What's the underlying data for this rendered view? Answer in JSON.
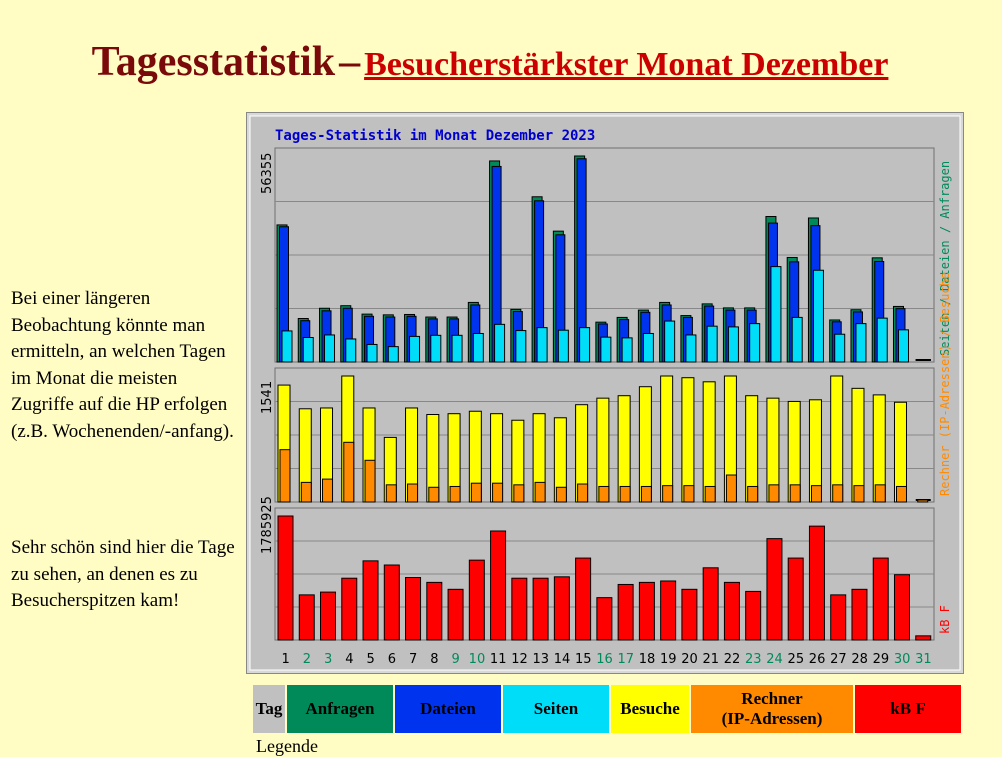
{
  "page": {
    "title_main": "Tagesstatistik",
    "title_dash": "–",
    "title_sub": "Besucherstärkster  Monat Dezember",
    "paragraph1": "Bei einer längeren Beobachtung  könnte man ermitteln,  an welchen Tagen im Monat die meisten Zugriffe  auf die HP erfolgen  (z.B. Wochenenden/-anfang).",
    "paragraph2": "Sehr schön sind hier die Tage zu sehen, an denen es zu Besucherspitzen kam!",
    "footer_partial": "Legende"
  },
  "legend": [
    {
      "label": "Tag",
      "color": "#c0c0c0",
      "width": 32
    },
    {
      "label": "Anfragen",
      "color": "#008a5a",
      "width": 106
    },
    {
      "label": "Dateien",
      "color": "#0033ee",
      "width": 106
    },
    {
      "label": "Seiten",
      "color": "#00ddf8",
      "width": 106
    },
    {
      "label": "Besuche",
      "color": "#ffff00",
      "width": 78
    },
    {
      "label": "Rechner\n(IP-Adressen)",
      "color": "#ff8a00",
      "width": 162
    },
    {
      "label": "kB F",
      "color": "#ff0000",
      "width": 106
    }
  ],
  "chart_data": {
    "type": "bar",
    "title": "Tages-Statistik im Monat Dezember 2023",
    "x": [
      1,
      2,
      3,
      4,
      5,
      6,
      7,
      8,
      9,
      10,
      11,
      12,
      13,
      14,
      15,
      16,
      17,
      18,
      19,
      20,
      21,
      22,
      23,
      24,
      25,
      26,
      27,
      28,
      29,
      30,
      31
    ],
    "weekend_days": [
      2,
      3,
      9,
      10,
      16,
      17,
      23,
      24,
      30,
      31
    ],
    "colors": {
      "anfragen": "#008a5a",
      "dateien": "#0033ee",
      "seiten": "#00ddf8",
      "besuche": "#ffff00",
      "rechner": "#ff8a00",
      "kbf": "#ff0000"
    },
    "panels": [
      {
        "max_label": "56355",
        "ymax": 56355,
        "right_label": "Seiten / Dateien / Anfragen",
        "series": [
          {
            "key": "anfragen",
            "values": [
              37500,
              11900,
              14700,
              15400,
              13100,
              12900,
              13000,
              12300,
              12300,
              16300,
              55000,
              14400,
              45200,
              35800,
              56355,
              10900,
              12200,
              14200,
              16300,
              12700,
              15900,
              14800,
              14800,
              39800,
              28600,
              39400,
              11500,
              14300,
              28500,
              15200,
              0
            ]
          },
          {
            "key": "dateien",
            "values": [
              37000,
              11300,
              14000,
              14700,
              12500,
              12300,
              12500,
              11800,
              11800,
              15600,
              53500,
              13800,
              44100,
              34800,
              55600,
              10400,
              11600,
              13600,
              15600,
              12200,
              15300,
              14200,
              14200,
              38000,
              27400,
              37300,
              11000,
              13700,
              27500,
              14600,
              0
            ]
          },
          {
            "key": "seiten",
            "values": [
              8500,
              6700,
              7400,
              6300,
              4800,
              4200,
              7000,
              7300,
              7300,
              7800,
              10300,
              8600,
              9400,
              8700,
              9400,
              6800,
              6600,
              7800,
              11200,
              7400,
              9800,
              9600,
              10500,
              26100,
              12200,
              25100,
              7600,
              10500,
              12000,
              8800,
              300
            ]
          }
        ]
      },
      {
        "max_label": "1541",
        "ymax": 1541,
        "right_label": "Rechner (IP-Adressen) / Besuche",
        "series": [
          {
            "key": "besuche",
            "values": [
              1430,
              1140,
              1150,
              1541,
              1150,
              790,
              1150,
              1070,
              1080,
              1110,
              1080,
              1000,
              1080,
              1030,
              1190,
              1270,
              1300,
              1410,
              1541,
              1520,
              1470,
              1541,
              1300,
              1270,
              1230,
              1250,
              1541,
              1390,
              1310,
              1220,
              0
            ]
          },
          {
            "key": "rechner",
            "values": [
              640,
              240,
              280,
              730,
              510,
              210,
              220,
              180,
              190,
              230,
              230,
              210,
              240,
              180,
              220,
              190,
              190,
              190,
              200,
              200,
              190,
              330,
              190,
              210,
              210,
              200,
              210,
              200,
              210,
              190,
              20
            ]
          }
        ]
      },
      {
        "max_label": "1785925",
        "ymax": 1785925,
        "right_label": "kB F",
        "series": [
          {
            "key": "kbf",
            "values": [
              1785925,
              650000,
              690000,
              890000,
              1140000,
              1080000,
              900000,
              830000,
              730000,
              1150000,
              1570000,
              890000,
              890000,
              910000,
              1180000,
              610000,
              800000,
              830000,
              850000,
              730000,
              1040000,
              830000,
              700000,
              1460000,
              1180000,
              1640000,
              650000,
              730000,
              1180000,
              940000,
              60000
            ]
          }
        ]
      }
    ]
  }
}
